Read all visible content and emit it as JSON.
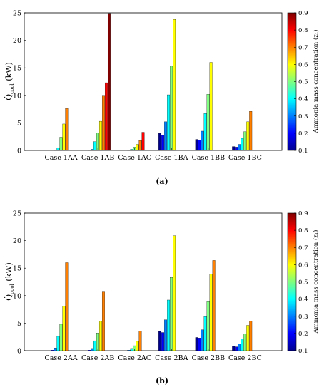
{
  "figure": {
    "panel_labels": [
      "(a)",
      "(b)"
    ]
  },
  "colorbar": {
    "label": "Ammonia mass concentration (z₁)",
    "ticks": [
      "0.1",
      "0.2",
      "0.3",
      "0.4",
      "0.5",
      "0.6",
      "0.7",
      "0.8",
      "0.9"
    ],
    "range": [
      0.1,
      0.9
    ],
    "colormap": "jet"
  },
  "chart_data": [
    {
      "type": "bar",
      "panel": "(a)",
      "ylabel": "Q̇_cool (kW)",
      "ylabel_main": "Q̇",
      "ylabel_sub": "cool",
      "ylabel_unit": " (kW)",
      "ylim": [
        0,
        25
      ],
      "yticks": [
        "0",
        "5",
        "10",
        "15",
        "20",
        "25"
      ],
      "categories": [
        "Case 1AA",
        "Case 1AB",
        "Case 1AC",
        "Case 1BA",
        "Case 1BB",
        "Case 1BC"
      ],
      "x_concentrations": [
        0.1,
        0.2,
        0.3,
        0.4,
        0.5,
        0.6,
        0.7,
        0.8,
        0.9
      ],
      "series_values": [
        [
          0,
          0,
          0.05,
          0.5,
          2.4,
          4.8,
          7.6,
          0,
          0
        ],
        [
          0,
          0.05,
          0.2,
          1.6,
          3.2,
          5.3,
          10.0,
          12.3,
          24.9
        ],
        [
          0,
          0,
          0.05,
          0.2,
          0.6,
          1.1,
          1.8,
          3.3,
          0
        ],
        [
          3.1,
          2.8,
          5.2,
          10.1,
          15.3,
          23.8,
          0,
          0,
          0
        ],
        [
          2.0,
          1.9,
          3.5,
          6.7,
          10.2,
          16.0,
          0,
          0,
          0
        ],
        [
          0.7,
          0.6,
          1.1,
          2.2,
          3.4,
          5.2,
          7.1,
          0,
          0
        ]
      ]
    },
    {
      "type": "bar",
      "panel": "(b)",
      "ylabel": "Q̇_cool (kW)",
      "ylabel_main": "Q̇",
      "ylabel_sub": "cool",
      "ylabel_unit": " (kW)",
      "ylim": [
        0,
        25
      ],
      "yticks": [
        "0",
        "5",
        "10",
        "15",
        "20",
        "25"
      ],
      "categories": [
        "Case 2AA",
        "Case 2AB",
        "Case 2AC",
        "Case 2BA",
        "Case 2BB",
        "Case 2BC"
      ],
      "x_concentrations": [
        0.1,
        0.2,
        0.3,
        0.4,
        0.5,
        0.6,
        0.7,
        0.8,
        0.9
      ],
      "series_values": [
        [
          0,
          0.1,
          0.5,
          2.6,
          4.8,
          8.1,
          16.0,
          0,
          0
        ],
        [
          0,
          0.1,
          0.4,
          1.8,
          3.2,
          5.4,
          10.8,
          0,
          0
        ],
        [
          0,
          0,
          0.1,
          0.4,
          0.9,
          1.7,
          3.6,
          0,
          0
        ],
        [
          3.5,
          3.3,
          5.6,
          9.2,
          13.3,
          20.9,
          0,
          0,
          0
        ],
        [
          2.4,
          2.3,
          3.8,
          6.2,
          8.9,
          13.9,
          16.4,
          0,
          0
        ],
        [
          0.8,
          0.7,
          1.2,
          2.1,
          3.0,
          4.6,
          5.4,
          0,
          0
        ]
      ]
    }
  ]
}
